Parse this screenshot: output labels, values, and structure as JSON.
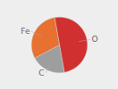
{
  "chart_data": {
    "type": "pie",
    "categories": [
      "O",
      "C",
      "Fe"
    ],
    "values": [
      50,
      20,
      30
    ],
    "colors": [
      "#d13030",
      "#9e9e9e",
      "#e87030"
    ]
  }
}
